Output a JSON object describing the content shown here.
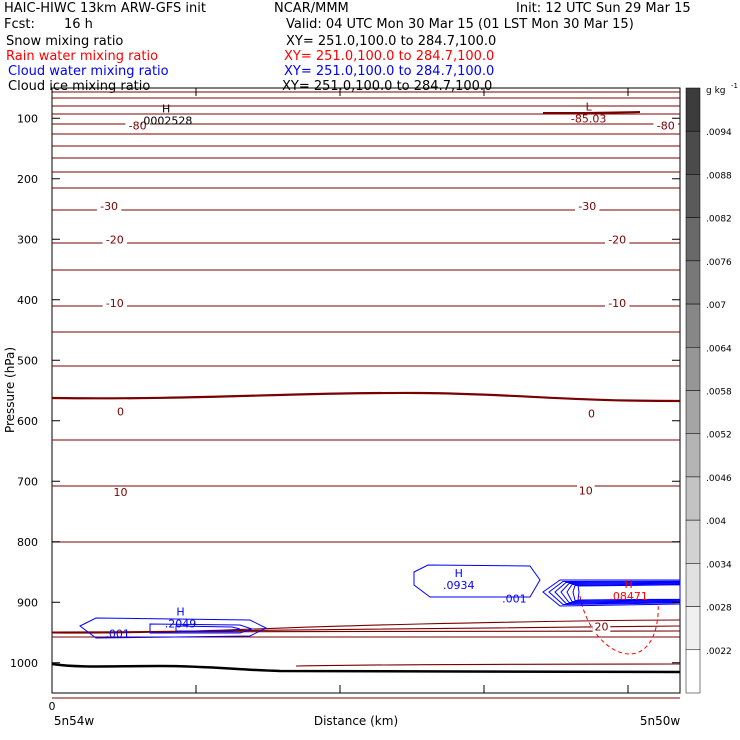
{
  "header": {
    "model": "HAIC-HIWC 13km ARW-GFS init",
    "org": "NCAR/MMM",
    "init": "Init: 12 UTC Sun 29 Mar 15",
    "fcst_label": "Fcst:",
    "fcst_value": "16 h",
    "valid": "Valid: 04 UTC Mon 30 Mar 15 (01 LST Mon 30 Mar 15)"
  },
  "fields": [
    {
      "name": "Snow mixing ratio",
      "xy": "XY= 251.0,100.0 to 284.7,100.0",
      "color": "#000000"
    },
    {
      "name": "Rain water mixing ratio",
      "xy": "XY= 251.0,100.0 to 284.7,100.0",
      "color": "#ff0000"
    },
    {
      "name": "Cloud water mixing ratio",
      "xy": "XY= 251.0,100.0 to 284.7,100.0",
      "color": "#0000ff"
    },
    {
      "name": "Cloud ice mixing ratio",
      "xy": "XY= 251.0,100.0 to 284.7,100.0",
      "color": "#000000"
    }
  ],
  "chart_data": {
    "type": "contour cross-section",
    "ylabel": "Pressure (hPa)",
    "xlabel": "Distance (km)",
    "yticks": [
      100,
      200,
      300,
      400,
      500,
      600,
      700,
      800,
      900,
      1000
    ],
    "ylim": [
      1050,
      50
    ],
    "xlim": [
      0,
      440
    ],
    "x_zero_label": "0",
    "x_left_label": "5n54w",
    "x_right_label": "5n50w",
    "temperature_labels": [
      {
        "text": "-80",
        "x": 60,
        "p": 112
      },
      {
        "text": "-80",
        "x": 430,
        "p": 112
      },
      {
        "text": "-30",
        "x": 40,
        "p": 245
      },
      {
        "text": "-30",
        "x": 375,
        "p": 245
      },
      {
        "text": "-20",
        "x": 44,
        "p": 300
      },
      {
        "text": "-20",
        "x": 396,
        "p": 300
      },
      {
        "text": "-10",
        "x": 44,
        "p": 405
      },
      {
        "text": "-10",
        "x": 396,
        "p": 405
      },
      {
        "text": "0",
        "x": 48,
        "p": 585
      },
      {
        "text": "0",
        "x": 378,
        "p": 588
      },
      {
        "text": "10",
        "x": 48,
        "p": 718
      },
      {
        "text": "10",
        "x": 374,
        "p": 715
      },
      {
        "text": "20",
        "x": 385,
        "p": 940
      }
    ],
    "extrema": [
      {
        "kind": "H",
        "value": ".0002528",
        "x": 80,
        "p": 100,
        "color": "#000000"
      },
      {
        "kind": "L",
        "value": "-85.03",
        "x": 376,
        "p": 97,
        "color": "#8b0000"
      },
      {
        "kind": "H",
        "value": ".0934",
        "x": 285,
        "p": 868,
        "color": "#0000ff"
      },
      {
        "kind": "H",
        "value": ".2049",
        "x": 90,
        "p": 932,
        "color": "#0000ff"
      },
      {
        "kind": "H",
        "value": ".08471",
        "x": 404,
        "p": 886,
        "color": "#ff0000"
      }
    ],
    "cloud_water_labels": [
      {
        "text": ".001",
        "x": 46,
        "p": 952
      },
      {
        "text": ".001",
        "x": 324,
        "p": 894
      }
    ],
    "colorbar": {
      "unit": "g kg",
      "unit_exp": "-1",
      "ticks": [
        ".0094",
        ".0088",
        ".0082",
        ".0076",
        ".007",
        ".0064",
        ".0058",
        ".0052",
        ".0046",
        ".004",
        ".0034",
        ".0028",
        ".0022"
      ]
    }
  }
}
